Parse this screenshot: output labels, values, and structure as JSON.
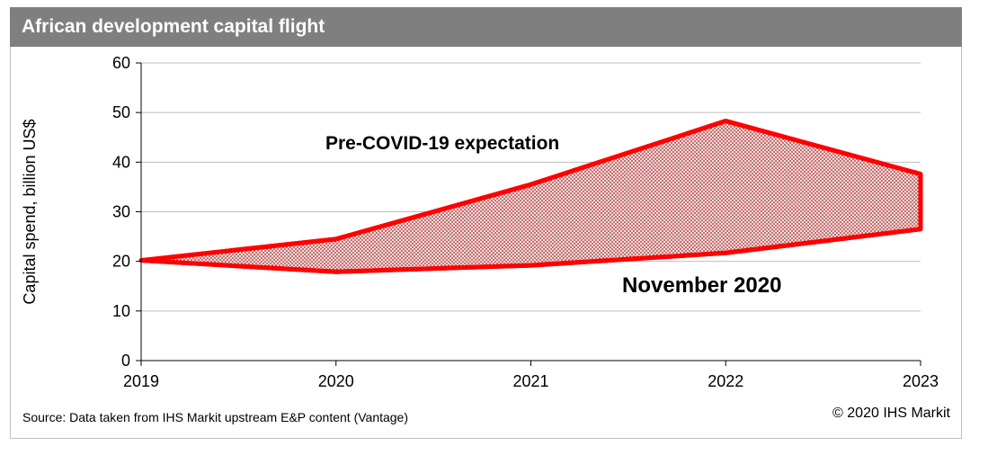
{
  "header": {
    "title": "African development capital flight"
  },
  "footer": {
    "source": "Source: Data taken from IHS Markit upstream E&P content (Vantage)",
    "copyright": "© 2020 IHS Markit"
  },
  "colors": {
    "band_fill": "#c0504d",
    "band_stroke": "#ff0000",
    "title_bg": "#7f7f7f",
    "grid": "#bfbfbf"
  },
  "chart_data": {
    "type": "area",
    "title": "African development capital flight",
    "xlabel": "",
    "ylabel": "Capital spend, billion US$",
    "x": [
      2019,
      2020,
      2021,
      2022,
      2023
    ],
    "ylim": [
      0,
      60
    ],
    "yticks": [
      0,
      10,
      20,
      30,
      40,
      50,
      60
    ],
    "grid": true,
    "series": [
      {
        "name": "Pre-COVID-19 expectation",
        "values": [
          20.2,
          24.5,
          35.5,
          48.3,
          37.6
        ]
      },
      {
        "name": "November 2020",
        "values": [
          20.2,
          17.9,
          19.2,
          21.7,
          26.5
        ]
      }
    ]
  }
}
